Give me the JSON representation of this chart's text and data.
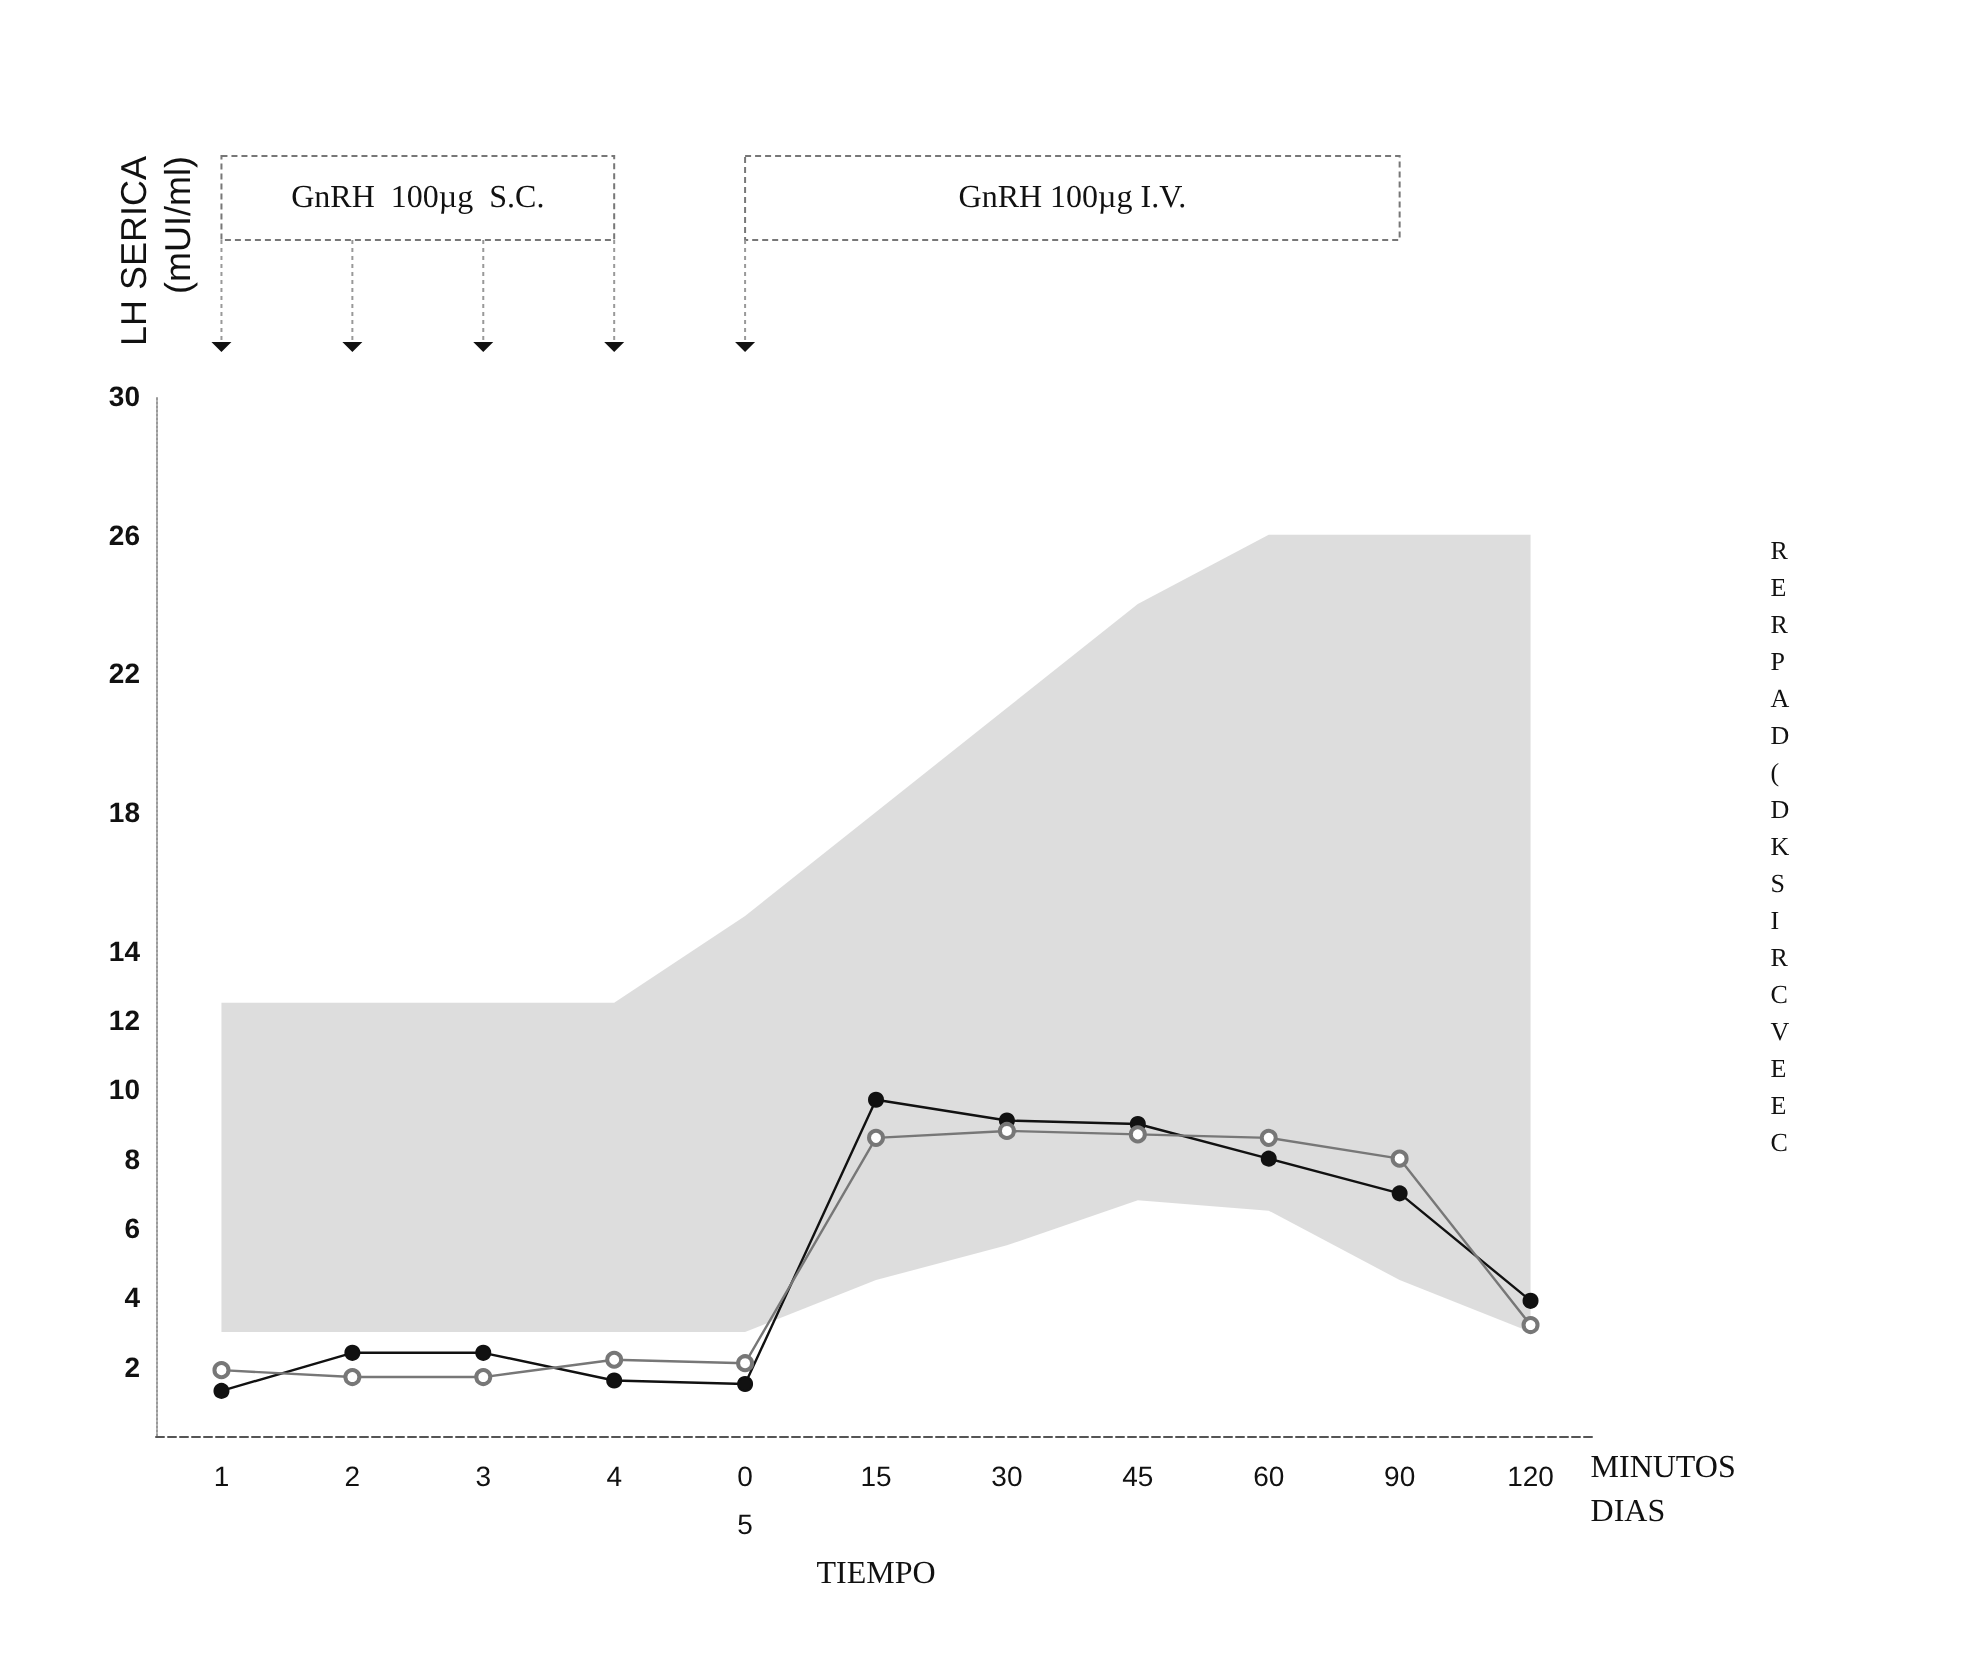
{
  "chart_data": {
    "type": "line",
    "ylabel": "LH SERICA\n(mUI/ml)",
    "xlabel": "TIEMPO",
    "categories": [
      "1",
      "2",
      "3",
      "4",
      "0\n5",
      "15",
      "30",
      "45",
      "60",
      "90",
      "120"
    ],
    "series": [
      {
        "color": "#111111",
        "marker": "circle",
        "values": [
          1.3,
          2.4,
          2.4,
          1.6,
          1.5,
          9.7,
          9.1,
          9.0,
          8.0,
          7.0,
          3.9
        ]
      },
      {
        "color": "#777777",
        "marker": "circle",
        "values": [
          1.9,
          1.7,
          1.7,
          2.2,
          2.1,
          8.6,
          8.8,
          8.7,
          8.6,
          8.0,
          3.2
        ]
      },
      {
        "type": "area",
        "color": "#bbbbbb",
        "values": [
          null,
          null,
          null,
          null,
          null,
          null,
          null,
          null,
          null,
          null,
          null
        ],
        "lower": [
          3,
          3,
          3,
          3,
          3,
          4.5,
          5.5,
          6.8,
          6.5,
          4.5,
          3
        ],
        "upper": [
          12.5,
          12.5,
          12.5,
          12.5,
          15,
          18,
          21,
          24,
          26,
          26,
          26
        ]
      }
    ],
    "ylim": [
      0,
      30
    ],
    "yticks": [
      2,
      4,
      6,
      8,
      10,
      12,
      14,
      18,
      22,
      26,
      30
    ],
    "annotations": [
      "GnRH  100µg  S.C.",
      "GnRH 100µg I.V.",
      "MINUTOS",
      "DIAS",
      "R\nE\nR\nP\nA\nD\n(\nD\nK\nS\nI\nR\nC\nV\nE\nE\nC"
    ]
  }
}
